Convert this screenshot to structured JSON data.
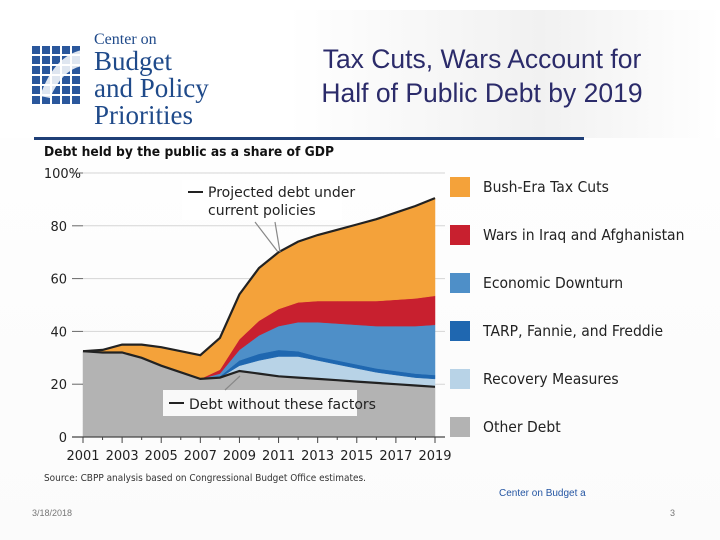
{
  "logo": {
    "line1": "Center on",
    "line2": "Budget",
    "line3": "and Policy",
    "line4": "Priorities"
  },
  "slide": {
    "title_line1": "Tax Cuts, Wars Account for",
    "title_line2": "Half of Public Debt by 2019",
    "date": "3/18/2018",
    "page": "3",
    "footer_org": "Center on Budget a"
  },
  "chart_data": {
    "type": "area",
    "title": "Debt held by the public as a share of GDP",
    "source": "Source: CBPP analysis based on Congressional Budget Office estimates.",
    "ylim": [
      0,
      100
    ],
    "y_ticks": [
      "0",
      "20",
      "40",
      "60",
      "80",
      "100%"
    ],
    "x_ticks": [
      "2001",
      "2003",
      "2005",
      "2007",
      "2009",
      "2011",
      "2013",
      "2015",
      "2017",
      "2019"
    ],
    "x": [
      2001,
      2002,
      2003,
      2004,
      2005,
      2006,
      2007,
      2008,
      2009,
      2010,
      2011,
      2012,
      2013,
      2014,
      2015,
      2016,
      2017,
      2018,
      2019
    ],
    "series": [
      {
        "name": "Other Debt",
        "color": "#b3b3b3",
        "values": [
          32.5,
          32,
          32,
          30,
          27,
          24.5,
          22,
          22.5,
          25,
          24,
          23,
          22.5,
          22,
          21.5,
          21,
          20.5,
          20,
          19.5,
          19
        ]
      },
      {
        "name": "Recovery Measures",
        "color": "#b8d3e7",
        "values": [
          0,
          0,
          0,
          0,
          0,
          0,
          0,
          0,
          2,
          5,
          7.5,
          8,
          7,
          6,
          5,
          4,
          3.5,
          3,
          3
        ]
      },
      {
        "name": "TARP, Fannie, and Freddie",
        "color": "#1f67b0",
        "values": [
          0,
          0,
          0,
          0,
          0,
          0,
          0,
          0.5,
          2,
          2.5,
          2.5,
          2,
          1.5,
          1.5,
          1.5,
          1.5,
          1.5,
          1.5,
          1.5
        ]
      },
      {
        "name": "Economic Downturn",
        "color": "#4e8fc8",
        "values": [
          0,
          0,
          0,
          0,
          0,
          0,
          0,
          1,
          4,
          7,
          9,
          11,
          13,
          14,
          15,
          16,
          17,
          18,
          19
        ]
      },
      {
        "name": "Wars in Iraq and Afghanistan",
        "color": "#c8202f",
        "values": [
          0,
          0,
          0,
          0,
          0,
          0,
          0,
          1.5,
          4,
          5.5,
          6.5,
          7.5,
          8,
          8.5,
          9,
          9.5,
          10,
          10.5,
          11
        ]
      },
      {
        "name": "Bush-Era Tax Cuts",
        "color": "#f4a23a",
        "values": [
          0,
          1,
          3,
          5,
          7,
          8,
          9,
          12,
          17,
          20,
          21.5,
          23,
          25,
          27,
          29,
          31,
          33,
          35,
          37
        ]
      }
    ],
    "annotations": [
      {
        "text_line1": "Projected debt under",
        "text_line2": "current policies"
      },
      {
        "text": "Debt without these factors"
      }
    ],
    "legend_position": "right"
  }
}
